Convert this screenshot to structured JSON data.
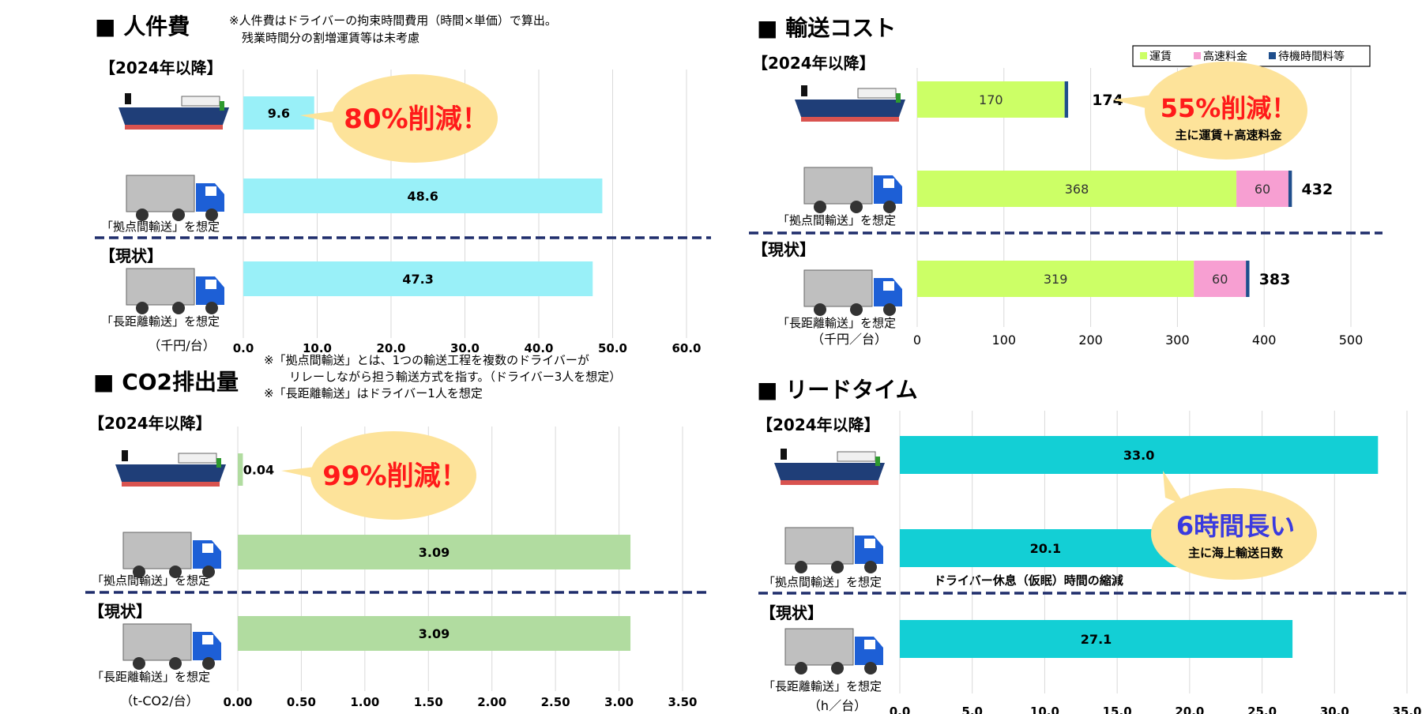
{
  "labor": {
    "title": "■ 人件費",
    "note_line1": "※人件費はドライバーの拘束時間費用（時間×単価）で算出。",
    "note_line2": "残業時間分の割増運賃等は未考慮",
    "section_after": "【2024年以降】",
    "section_current": "【現状】",
    "relay_label": "「拠点間輸送」を想定",
    "long_label": "「長距離輸送」を想定",
    "unit": "（千円/台）",
    "bubble": "80%削減！"
  },
  "co2": {
    "title": "■ CO2排出量",
    "note_line1": "※「拠点間輸送」とは、1つの輸送工程を複数のドライバーが",
    "note_line2": "リレーしながら担う輸送方式を指す。（ドライバー3人を想定）",
    "note_line3": "※「長距離輸送」はドライバー1人を想定",
    "section_after": "【2024年以降】",
    "section_current": "【現状】",
    "relay_label": "「拠点間輸送」を想定",
    "long_label": "「長距離輸送」を想定",
    "unit": "（t-CO2/台）",
    "bubble": "99%削減！"
  },
  "transport": {
    "title": "■ 輸送コスト",
    "section_after": "【2024年以降】",
    "section_current": "【現状】",
    "relay_label": "「拠点間輸送」を想定",
    "long_label": "「長距離輸送」を想定",
    "unit": "（千円／台）",
    "bubble_main": "55%削減！",
    "bubble_sub": "主に運賃＋高速料金"
  },
  "leadtime": {
    "title": "■ リードタイム",
    "section_after": "【2024年以降】",
    "section_current": "【現状】",
    "relay_label": "「拠点間輸送」を想定",
    "long_label": "「長距離輸送」を想定",
    "unit": "（h／台）",
    "bubble_main": "6時間長い",
    "bubble_sub": "主に海上輸送日数",
    "annotation": "ドライバー休息（仮眠）時間の縮減"
  },
  "colors": {
    "labor_bar": "#99f0f8",
    "co2_bar": "#b1dca0",
    "lead_bar": "#13cfd5",
    "freight": "#ccff66",
    "toll": "#f79fd2",
    "waiting": "#1f4e8c",
    "divider": "#1f2d6b",
    "bubble": "#fde39a",
    "red_text": "#ff1a1a",
    "blue_text": "#3a3ae0"
  },
  "chart_data": [
    {
      "id": "labor",
      "type": "bar",
      "orientation": "horizontal",
      "title": "人件費",
      "categories": [
        "ship_2024",
        "relay_2024",
        "long_current"
      ],
      "values": [
        9.6,
        48.6,
        47.3
      ],
      "value_labels": [
        "9.6",
        "48.6",
        "47.3"
      ],
      "xlim": [
        0,
        60
      ],
      "ticks": [
        "0.0",
        "10.0",
        "20.0",
        "30.0",
        "40.0",
        "50.0",
        "60.0"
      ],
      "tick_values": [
        0,
        10,
        20,
        30,
        40,
        50,
        60
      ]
    },
    {
      "id": "co2",
      "type": "bar",
      "orientation": "horizontal",
      "title": "CO2排出量",
      "categories": [
        "ship_2024",
        "relay_2024",
        "long_current"
      ],
      "values": [
        0.04,
        3.09,
        3.09
      ],
      "value_labels": [
        "0.04",
        "3.09",
        "3.09"
      ],
      "xlim": [
        0,
        3.5
      ],
      "ticks": [
        "0.00",
        "0.50",
        "1.00",
        "1.50",
        "2.00",
        "2.50",
        "3.00",
        "3.50"
      ],
      "tick_values": [
        0,
        0.5,
        1,
        1.5,
        2,
        2.5,
        3,
        3.5
      ]
    },
    {
      "id": "transport",
      "type": "bar",
      "orientation": "horizontal",
      "stacked": true,
      "title": "輸送コスト",
      "categories": [
        "ship_2024",
        "relay_2024",
        "long_current"
      ],
      "series": [
        {
          "name": "運賃",
          "values": [
            170,
            368,
            319
          ],
          "labels": [
            "170",
            "368",
            "319"
          ]
        },
        {
          "name": "高速料金",
          "values": [
            0,
            60,
            60
          ],
          "labels": [
            "",
            "60",
            "60"
          ]
        },
        {
          "name": "待機時間料等",
          "values": [
            4,
            4,
            4
          ],
          "labels": [
            "",
            "",
            ""
          ]
        }
      ],
      "totals": [
        "174",
        "432",
        "383"
      ],
      "xlim": [
        0,
        500
      ],
      "ticks": [
        "0",
        "100",
        "200",
        "300",
        "400",
        "500"
      ],
      "tick_values": [
        0,
        100,
        200,
        300,
        400,
        500
      ],
      "legend": [
        "運賃",
        "高速料金",
        "待機時間料等"
      ],
      "legend_position": "top-right"
    },
    {
      "id": "leadtime",
      "type": "bar",
      "orientation": "horizontal",
      "title": "リードタイム",
      "categories": [
        "ship_2024",
        "relay_2024",
        "long_current"
      ],
      "values": [
        33.0,
        20.1,
        27.1
      ],
      "value_labels": [
        "33.0",
        "20.1",
        "27.1"
      ],
      "xlim": [
        0,
        35
      ],
      "ticks": [
        "0.0",
        "5.0",
        "10.0",
        "15.0",
        "20.0",
        "25.0",
        "30.0",
        "35.0"
      ],
      "tick_values": [
        0,
        5,
        10,
        15,
        20,
        25,
        30,
        35
      ]
    }
  ]
}
